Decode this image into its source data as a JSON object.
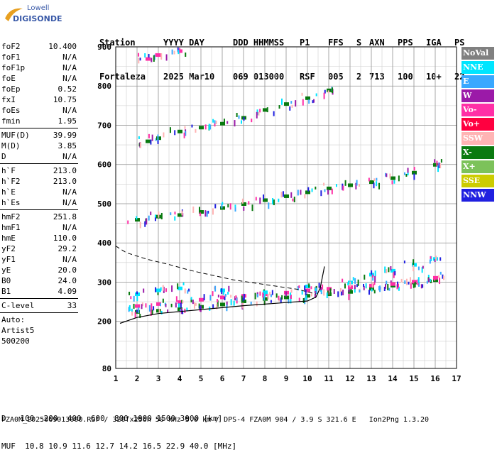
{
  "logo": {
    "line1": "Lowell",
    "line2": "DIGISONDE"
  },
  "header": {
    "line1": [
      "Station",
      "YYYY DAY",
      "DDD HHMMSS",
      "P1",
      "FFS",
      "S",
      "AXN",
      "PPS",
      "IGA",
      "PS"
    ],
    "line2": [
      "Fortaleza",
      "2025 Mar10",
      "069 013000",
      "RSF",
      "005",
      "2",
      "713",
      "100",
      "10+",
      "22"
    ]
  },
  "params": {
    "group1": [
      [
        "foF2",
        "10.400"
      ],
      [
        "foF1",
        "N/A"
      ],
      [
        "foF1p",
        "N/A"
      ],
      [
        "foE",
        "N/A"
      ],
      [
        "foEp",
        "0.52"
      ],
      [
        "fxI",
        "10.75"
      ],
      [
        "foEs",
        "N/A"
      ],
      [
        "fmin",
        "1.95"
      ]
    ],
    "group2": [
      [
        "MUF(D)",
        "39.99"
      ],
      [
        "M(D)",
        "3.85"
      ],
      [
        "D",
        "N/A"
      ]
    ],
    "group3": [
      [
        "h`F",
        "213.0"
      ],
      [
        "h`F2",
        "213.0"
      ],
      [
        "h`E",
        "N/A"
      ],
      [
        "h`Es",
        "N/A"
      ]
    ],
    "group4": [
      [
        "hmF2",
        "251.8"
      ],
      [
        "hmF1",
        "N/A"
      ],
      [
        "hmE",
        "110.0"
      ],
      [
        "yF2",
        "29.2"
      ],
      [
        "yF1",
        "N/A"
      ],
      [
        "yE",
        "20.0"
      ],
      [
        "B0",
        "24.0"
      ],
      [
        "B1",
        "4.09"
      ]
    ],
    "group5": [
      [
        "C-level",
        "33"
      ]
    ],
    "extra": [
      "Auto:",
      "Artist5",
      "500200"
    ]
  },
  "legend": [
    {
      "label": "NoVal",
      "color": "#808080"
    },
    {
      "label": "NNE",
      "color": "#00e5ff"
    },
    {
      "label": "E",
      "color": "#39a8ff"
    },
    {
      "label": "W",
      "color": "#9b1aa8"
    },
    {
      "label": "Vo-",
      "color": "#ff2fa6"
    },
    {
      "label": "Vo+",
      "color": "#ff0040"
    },
    {
      "label": "SSW",
      "color": "#ffb4b4"
    },
    {
      "label": "X-",
      "color": "#0a7a10"
    },
    {
      "label": "X+",
      "color": "#7cc25a"
    },
    {
      "label": "SSE",
      "color": "#cccc00"
    },
    {
      "label": "NNW",
      "color": "#2020e0"
    }
  ],
  "bottom": {
    "d_line": "D   100  200  400  600  800 1000 1500 3000 [km]",
    "muf_line": "MUF  10.8 10.9 11.6 12.7 14.2 16.5 22.9 40.0 [MHz]",
    "footer": "FZA0M_2025069013000.RSF / 320fx256h 50 kHz 5.0 km / DPS-4 FZA0M 904 / 3.9 S 321.6 E   Ion2Png 1.3.20"
  },
  "chart_data": {
    "type": "scatter",
    "xlim": [
      1,
      17
    ],
    "ylim": [
      80,
      900
    ],
    "x_ticks": [
      1,
      2,
      3,
      4,
      5,
      6,
      7,
      8,
      9,
      10,
      11,
      12,
      13,
      14,
      15,
      16,
      17
    ],
    "y_ticks": [
      80,
      200,
      300,
      400,
      500,
      600,
      700,
      800,
      900
    ],
    "grid": true,
    "series": [
      {
        "name": "X-",
        "points": [
          [
            2.0,
            225
          ],
          [
            3.0,
            228
          ],
          [
            4.0,
            232
          ],
          [
            5.0,
            238
          ],
          [
            6.0,
            244
          ],
          [
            7.0,
            252
          ],
          [
            8.0,
            258
          ],
          [
            9.0,
            262
          ],
          [
            10.0,
            266
          ],
          [
            11.0,
            270
          ],
          [
            12.0,
            276
          ],
          [
            13.0,
            284
          ],
          [
            14.0,
            292
          ],
          [
            15.0,
            300
          ],
          [
            16.0,
            306
          ]
        ]
      },
      {
        "name": "Vo-",
        "points": [
          [
            2.0,
            240
          ],
          [
            3.0,
            245
          ],
          [
            4.0,
            250
          ],
          [
            5.0,
            256
          ],
          [
            6.0,
            262
          ],
          [
            7.0,
            266
          ],
          [
            8.0,
            270
          ],
          [
            9.0,
            274
          ],
          [
            10.0,
            280
          ],
          [
            11.0,
            284
          ],
          [
            12.0,
            288
          ],
          [
            13.0,
            292
          ],
          [
            14.0,
            296
          ],
          [
            15.0,
            302
          ],
          [
            16.0,
            312
          ]
        ]
      },
      {
        "name": "NNE",
        "points": [
          [
            2.0,
            270
          ],
          [
            3.0,
            280
          ],
          [
            4.0,
            285
          ],
          [
            6.0,
            280
          ],
          [
            8.0,
            275
          ],
          [
            10.0,
            290
          ],
          [
            12.0,
            300
          ],
          [
            13.0,
            320
          ],
          [
            14.0,
            330
          ],
          [
            15.0,
            345
          ],
          [
            16.0,
            360
          ]
        ]
      },
      {
        "name": "X- 2nd hop",
        "points": [
          [
            2.0,
            460
          ],
          [
            3.0,
            468
          ],
          [
            4.0,
            472
          ],
          [
            5.0,
            480
          ],
          [
            6.0,
            490
          ],
          [
            7.0,
            500
          ],
          [
            8.0,
            510
          ],
          [
            9.0,
            520
          ],
          [
            10.0,
            530
          ],
          [
            11.0,
            540
          ],
          [
            12.0,
            548
          ],
          [
            13.0,
            556
          ],
          [
            14.0,
            566
          ],
          [
            15.0,
            580
          ],
          [
            16.0,
            600
          ]
        ]
      },
      {
        "name": "X- 3rd hop",
        "points": [
          [
            2.5,
            660
          ],
          [
            3.0,
            668
          ],
          [
            4.0,
            685
          ],
          [
            5.0,
            695
          ],
          [
            6.0,
            705
          ],
          [
            7.0,
            720
          ],
          [
            8.0,
            740
          ],
          [
            9.0,
            755
          ],
          [
            10.0,
            770
          ],
          [
            11.0,
            790
          ]
        ]
      },
      {
        "name": "Vo- 4th hop",
        "points": [
          [
            2.5,
            870
          ],
          [
            3.0,
            880
          ],
          [
            4.0,
            890
          ]
        ]
      }
    ],
    "curves": {
      "profile_solid": [
        [
          1.2,
          195
        ],
        [
          2.0,
          210
        ],
        [
          3.0,
          220
        ],
        [
          4.0,
          225
        ],
        [
          5.0,
          230
        ],
        [
          6.0,
          235
        ],
        [
          7.0,
          240
        ],
        [
          8.0,
          244
        ],
        [
          9.0,
          248
        ],
        [
          10.0,
          252
        ],
        [
          10.4,
          262
        ],
        [
          10.6,
          285
        ],
        [
          10.8,
          340
        ]
      ],
      "profile_dashed": [
        [
          1.0,
          392
        ],
        [
          1.5,
          375
        ],
        [
          2.5,
          358
        ],
        [
          3.5,
          345
        ],
        [
          4.5,
          330
        ],
        [
          5.5,
          318
        ],
        [
          6.5,
          306
        ],
        [
          7.5,
          298
        ],
        [
          8.5,
          290
        ],
        [
          9.5,
          282
        ],
        [
          10.4,
          270
        ]
      ]
    }
  }
}
